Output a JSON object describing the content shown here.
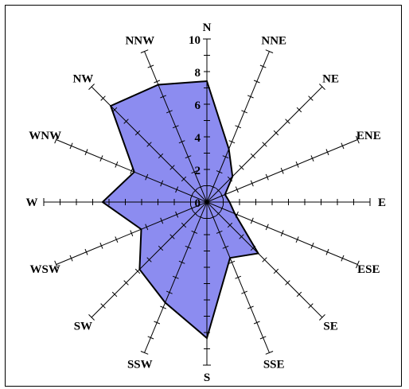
{
  "chart_data": {
    "type": "radar",
    "subtype": "wind-rose",
    "directions": [
      "N",
      "NNE",
      "NE",
      "ENE",
      "E",
      "ESE",
      "SE",
      "SSE",
      "S",
      "SSW",
      "SW",
      "WSW",
      "W",
      "WNW",
      "NW",
      "NNW"
    ],
    "values": [
      8,
      3.8,
      2.4,
      1.3,
      1.5,
      2.0,
      4.8,
      4.0,
      9.0,
      7.2,
      6.3,
      4.7,
      6.9,
      5.2,
      9.0,
      8.4
    ],
    "radial_ticks": [
      0,
      2,
      4,
      6,
      8,
      10
    ],
    "rmax": 10,
    "fill_color": "#8c8cf0",
    "stroke_color": "#000000",
    "axis_color": "#000000"
  }
}
